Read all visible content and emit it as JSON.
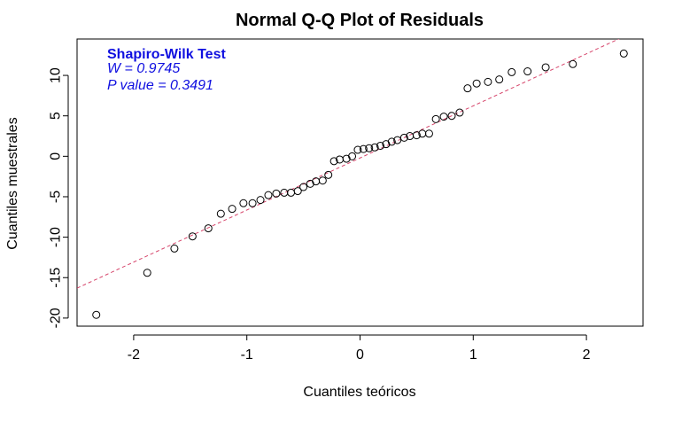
{
  "chart_data": {
    "type": "scatter",
    "title": "Normal Q-Q Plot of Residuals",
    "xlabel": "Cuantiles teóricos",
    "ylabel": "Cuantiles muestrales",
    "xlim": [
      -2.5,
      2.5
    ],
    "ylim": [
      -21,
      14.5
    ],
    "x_ticks": [
      -2,
      -1,
      0,
      1,
      2
    ],
    "x_tick_labels": [
      "-2",
      "-1",
      "0",
      "1",
      "2"
    ],
    "y_ticks": [
      -20,
      -15,
      -10,
      -5,
      0,
      5,
      10
    ],
    "y_tick_labels": [
      "-20",
      "-15",
      "-10",
      "-5",
      "0",
      "5",
      "10"
    ],
    "grid": false,
    "legend": "none",
    "reference_line": {
      "style": "dashed",
      "color": "#d6456b",
      "points": [
        [
          -2.5,
          -16.3
        ],
        [
          2.3,
          14.6
        ]
      ]
    },
    "annotation": {
      "color": "#1010e0",
      "lines": [
        "Shapiro-Wilk Test",
        "W = 0.9745",
        "P value = 0.3491"
      ]
    },
    "series": [
      {
        "marker": "open-circle",
        "color": "#000000",
        "points": [
          [
            -2.33,
            -19.6
          ],
          [
            -1.88,
            -14.4
          ],
          [
            -1.64,
            -11.4
          ],
          [
            -1.48,
            -9.9
          ],
          [
            -1.34,
            -8.9
          ],
          [
            -1.23,
            -7.1
          ],
          [
            -1.13,
            -6.5
          ],
          [
            -1.03,
            -5.8
          ],
          [
            -0.95,
            -5.8
          ],
          [
            -0.88,
            -5.4
          ],
          [
            -0.81,
            -4.8
          ],
          [
            -0.74,
            -4.6
          ],
          [
            -0.67,
            -4.5
          ],
          [
            -0.61,
            -4.5
          ],
          [
            -0.55,
            -4.3
          ],
          [
            -0.5,
            -3.8
          ],
          [
            -0.44,
            -3.4
          ],
          [
            -0.39,
            -3.1
          ],
          [
            -0.33,
            -3.0
          ],
          [
            -0.28,
            -2.3
          ],
          [
            -0.23,
            -0.6
          ],
          [
            -0.18,
            -0.4
          ],
          [
            -0.12,
            -0.3
          ],
          [
            -0.07,
            0.0
          ],
          [
            -0.02,
            0.8
          ],
          [
            0.03,
            0.9
          ],
          [
            0.08,
            1.0
          ],
          [
            0.13,
            1.1
          ],
          [
            0.18,
            1.3
          ],
          [
            0.23,
            1.5
          ],
          [
            0.28,
            1.8
          ],
          [
            0.33,
            2.0
          ],
          [
            0.39,
            2.3
          ],
          [
            0.44,
            2.5
          ],
          [
            0.5,
            2.6
          ],
          [
            0.55,
            2.8
          ],
          [
            0.61,
            2.8
          ],
          [
            0.67,
            4.6
          ],
          [
            0.74,
            4.9
          ],
          [
            0.81,
            5.0
          ],
          [
            0.88,
            5.4
          ],
          [
            0.95,
            8.4
          ],
          [
            1.03,
            9.0
          ],
          [
            1.13,
            9.2
          ],
          [
            1.23,
            9.5
          ],
          [
            1.34,
            10.4
          ],
          [
            1.48,
            10.5
          ],
          [
            1.64,
            11.0
          ],
          [
            1.88,
            11.4
          ],
          [
            2.33,
            12.7
          ]
        ]
      }
    ]
  }
}
